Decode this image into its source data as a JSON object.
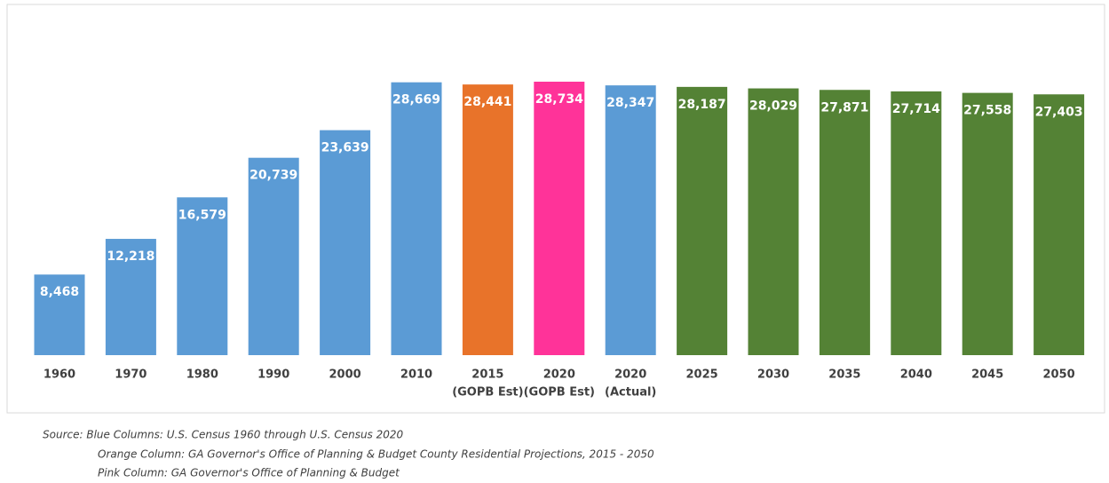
{
  "chart_data": {
    "type": "bar",
    "categories": [
      "1960",
      "1970",
      "1980",
      "1990",
      "2000",
      "2010",
      "2015",
      "2020",
      "2020",
      "2025",
      "2030",
      "2035",
      "2040",
      "2045",
      "2050"
    ],
    "category_notes": [
      null,
      null,
      null,
      null,
      null,
      null,
      "(GOPB Est)",
      "(GOPB Est)",
      "(Actual)",
      null,
      null,
      null,
      null,
      null,
      null
    ],
    "values": [
      8468,
      12218,
      16579,
      20739,
      23639,
      28669,
      28441,
      28734,
      28347,
      28187,
      28029,
      27871,
      27714,
      27558,
      27403
    ],
    "value_labels": [
      "8,468",
      "12,218",
      "16,579",
      "20,739",
      "23,639",
      "28,669",
      "28,441",
      "28,734",
      "28,347",
      "28,187",
      "28,029",
      "27,871",
      "27,714",
      "27,558",
      "27,403"
    ],
    "colors": [
      "#5b9bd5",
      "#5b9bd5",
      "#5b9bd5",
      "#5b9bd5",
      "#5b9bd5",
      "#5b9bd5",
      "#e8732a",
      "#ff3399",
      "#5b9bd5",
      "#548235",
      "#548235",
      "#548235",
      "#548235",
      "#548235",
      "#548235"
    ],
    "notes": [
      "Source:  Blue Columns:  U.S. Census 1960  through U.S. Census 2020",
      "Orange Column:  GA Governor's Office of Planning & Budget County Residential Projections, 2015 - 2050",
      "Pink Column:  GA Governor's Office of Planning & Budget"
    ]
  }
}
